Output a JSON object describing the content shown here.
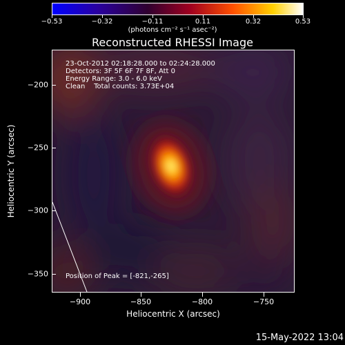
{
  "colorbar": {
    "tick_labels": [
      "−0.53",
      "−0.32",
      "−0.11",
      "0.11",
      "0.32",
      "0.53"
    ],
    "units": "(photons cm⁻² s⁻¹ asec⁻²)"
  },
  "title": "Reconstructed RHESSI Image",
  "annotations": {
    "time": "23-Oct-2012 02:18:28.000 to 02:24:28.000",
    "detectors": "Detectors: 3F 5F 6F 7F 8F, Att 0",
    "energy": "Energy Range: 3.0 - 6.0 keV",
    "algorithm": "Clean    Total counts: 3.73E+04",
    "peak": "Position of Peak = [-821,-265]"
  },
  "axes": {
    "xlabel": "Heliocentric X (arcsec)",
    "ylabel": "Heliocentric Y (arcsec)",
    "x_ticks": [
      "−900",
      "−850",
      "−800",
      "−750"
    ],
    "y_ticks": [
      "−200",
      "−250",
      "−300",
      "−350"
    ]
  },
  "footer": "15-May-2022 13:04",
  "image_data": {
    "xlim": [
      -920,
      -722
    ],
    "ylim": [
      -365,
      -167
    ],
    "peak": [
      -821,
      -265
    ],
    "value_range": [
      -0.53,
      0.53
    ],
    "colormap": "RHESSI-fire"
  }
}
